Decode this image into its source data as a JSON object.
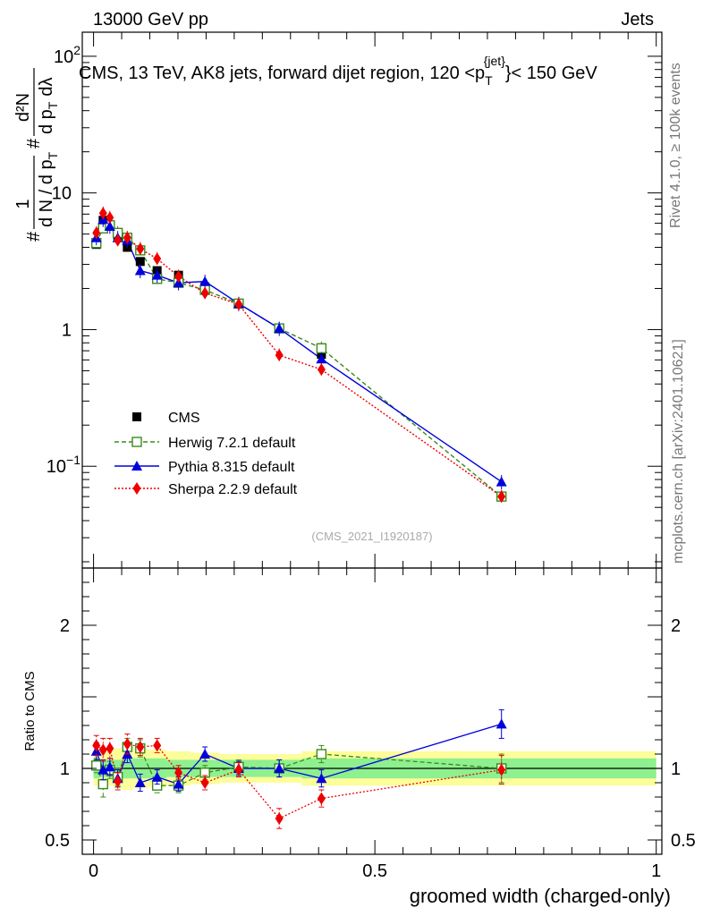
{
  "header": {
    "left": "13000 GeV pp",
    "right": "Jets"
  },
  "side": {
    "rivet": "Rivet 4.1.0, ≥ 100k events",
    "mcplots": "mcplots.cern.ch [arXiv:2401.10621]"
  },
  "watermark": "(CMS_2021_I1920187)",
  "colors": {
    "cms": "#000000",
    "herwig": "#3a8a1e",
    "pythia": "#0000dd",
    "sherpa": "#ee0000",
    "band_inner": "#8ef08e",
    "band_outer": "#fdfd9a"
  },
  "chart_data": [
    {
      "type": "line",
      "title": "CMS, 13 TeV, AK8 jets, forward dijet region, 120 <p_T^{jet}< 150 GeV",
      "title_parts": {
        "main": "CMS, 13 TeV, AK8 jets, forward dijet region, 120 <p",
        "sub": "T",
        "sup": "{jet}",
        "tail": "}< 150 GeV"
      },
      "ylabel_parts": {
        "pre": "#",
        "frac1_num": "1",
        "frac1_den": "d N / d p",
        "frac1_sub": "T",
        "mid": "#",
        "frac2_num": "d²N",
        "frac2_den": "d p",
        "frac2_sub": "T",
        "frac2_tail": "dλ"
      },
      "yscale": "log",
      "ylim": [
        0.018,
        150
      ],
      "xlim": [
        -0.02,
        1.01
      ],
      "yticks": [
        {
          "value": 0.1,
          "base": "10",
          "exp": "−1"
        },
        {
          "value": 1,
          "base": "1",
          "exp": ""
        },
        {
          "value": 10,
          "base": "10",
          "exp": ""
        },
        {
          "value": 100,
          "base": "10",
          "exp": "2"
        }
      ],
      "legend": {
        "position": "middle-left",
        "entries": [
          {
            "key": "cms",
            "label": "CMS"
          },
          {
            "key": "herwig",
            "label": "Herwig 7.2.1 default"
          },
          {
            "key": "pythia",
            "label": "Pythia 8.315 default"
          },
          {
            "key": "sherpa",
            "label": "Sherpa 2.2.9 default"
          }
        ]
      },
      "x": [
        0.005,
        0.017,
        0.029,
        0.043,
        0.06,
        0.083,
        0.113,
        0.151,
        0.198,
        0.258,
        0.33,
        0.405,
        0.725
      ],
      "series": [
        {
          "name": "CMS",
          "key": "cms",
          "values": [
            4.2,
            6.3,
            5.8,
            4.9,
            4.0,
            3.15,
            2.7,
            2.5,
            2.05,
            1.55,
            1.02,
            0.66,
            0.06
          ]
        },
        {
          "name": "Herwig 7.2.1 default",
          "key": "herwig",
          "values": [
            4.3,
            5.5,
            5.8,
            5.1,
            4.7,
            3.8,
            2.35,
            2.2,
            1.95,
            1.55,
            1.02,
            0.73,
            0.06
          ]
        },
        {
          "name": "Pythia 8.315 default",
          "key": "pythia",
          "values": [
            4.7,
            6.4,
            5.7,
            4.7,
            4.5,
            2.7,
            2.5,
            2.2,
            2.25,
            1.55,
            1.02,
            0.61,
            0.077
          ]
        },
        {
          "name": "Sherpa 2.2.9 default",
          "key": "sherpa",
          "values": [
            5.1,
            7.1,
            6.6,
            4.5,
            4.7,
            3.9,
            3.3,
            2.45,
            1.85,
            1.53,
            0.65,
            0.51,
            0.06
          ]
        }
      ]
    },
    {
      "type": "line",
      "ylabel": "Ratio to CMS",
      "xlabel": "groomed width (charged-only)",
      "ylim": [
        0.4,
        2.4
      ],
      "xlim": [
        -0.02,
        1.01
      ],
      "yticks": [
        0.5,
        1,
        2
      ],
      "ytick_labels": [
        "0.5",
        "1",
        "2"
      ],
      "xticks": [
        0,
        0.5,
        1
      ],
      "xtick_labels": [
        "0",
        "0.5",
        "1"
      ],
      "x": [
        0.005,
        0.017,
        0.029,
        0.043,
        0.06,
        0.083,
        0.113,
        0.151,
        0.198,
        0.258,
        0.33,
        0.405,
        0.725
      ],
      "bin_edges": [
        0,
        0.011,
        0.023,
        0.035,
        0.05,
        0.07,
        0.096,
        0.13,
        0.172,
        0.225,
        0.29,
        0.37,
        0.44,
        1.0
      ],
      "band_inner": [
        0.07,
        0.06,
        0.06,
        0.06,
        0.07,
        0.07,
        0.07,
        0.06,
        0.06,
        0.06,
        0.06,
        0.07,
        0.07
      ],
      "band_outer": [
        0.12,
        0.14,
        0.12,
        0.14,
        0.15,
        0.14,
        0.13,
        0.12,
        0.11,
        0.1,
        0.1,
        0.12,
        0.12
      ],
      "series": [
        {
          "name": "Herwig 7.2.1 default",
          "key": "herwig",
          "values": [
            1.02,
            0.89,
            0.99,
            0.94,
            1.15,
            1.14,
            0.88,
            0.88,
            0.97,
            1.01,
            1.0,
            1.1,
            1.0
          ],
          "errors": [
            0.05,
            0.09,
            0.06,
            0.06,
            0.06,
            0.06,
            0.05,
            0.05,
            0.05,
            0.05,
            0.06,
            0.06,
            0.1
          ]
        },
        {
          "name": "Pythia 8.315 default",
          "key": "pythia",
          "values": [
            1.12,
            0.99,
            1.01,
            0.93,
            1.1,
            0.9,
            0.94,
            0.89,
            1.1,
            1.0,
            1.0,
            0.93,
            1.31
          ],
          "errors": [
            0.06,
            0.07,
            0.06,
            0.06,
            0.06,
            0.06,
            0.05,
            0.05,
            0.05,
            0.05,
            0.06,
            0.06,
            0.1
          ]
        },
        {
          "name": "Sherpa 2.2.9 default",
          "key": "sherpa",
          "values": [
            1.16,
            1.13,
            1.14,
            0.91,
            1.17,
            1.15,
            1.16,
            0.97,
            0.9,
            0.99,
            0.65,
            0.79,
            0.99
          ],
          "errors": [
            0.07,
            0.08,
            0.07,
            0.06,
            0.07,
            0.06,
            0.05,
            0.05,
            0.05,
            0.05,
            0.07,
            0.06,
            0.1
          ]
        }
      ]
    }
  ]
}
